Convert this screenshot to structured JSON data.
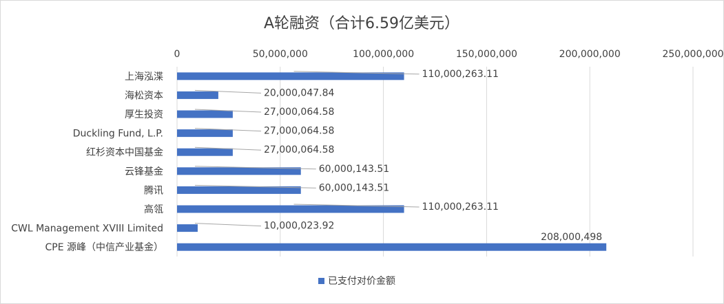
{
  "chart_data": {
    "type": "bar",
    "orientation": "horizontal",
    "title": "A轮融资（合计6.59亿美元）",
    "xlabel": "",
    "ylabel": "",
    "xlim": [
      0,
      250000000
    ],
    "x_tick_labels": [
      "0",
      "50,000,000",
      "100,000,000",
      "150,000,000",
      "200,000,000",
      "250,000,000"
    ],
    "x_ticks": [
      0,
      50000000,
      100000000,
      150000000,
      200000000,
      250000000
    ],
    "x_axis_position": "top",
    "grid": "vertical",
    "legend_position": "bottom",
    "bar_color": "#4472c4",
    "categories": [
      "上海泓渫",
      "海松资本",
      "厚生投资",
      "Duckling Fund, L.P.",
      "红杉资本中国基金",
      "云锋基金",
      "腾讯",
      "高瓴",
      "CWL Management XVIII Limited",
      "CPE 源峰（中信产业基金）"
    ],
    "series": [
      {
        "name": "已支付对价金额",
        "values": [
          110000263.11,
          20000047.84,
          27000064.58,
          27000064.58,
          27000064.58,
          60000143.51,
          60000143.51,
          110000263.11,
          10000023.92,
          208000498
        ],
        "data_labels": [
          "110,000,263.11",
          "20,000,047.84",
          "27,000,064.58",
          "27,000,064.58",
          "27,000,064.58",
          "60,000,143.51",
          "60,000,143.51",
          "110,000,263.11",
          "10,000,023.92",
          "208,000,498"
        ]
      }
    ]
  }
}
